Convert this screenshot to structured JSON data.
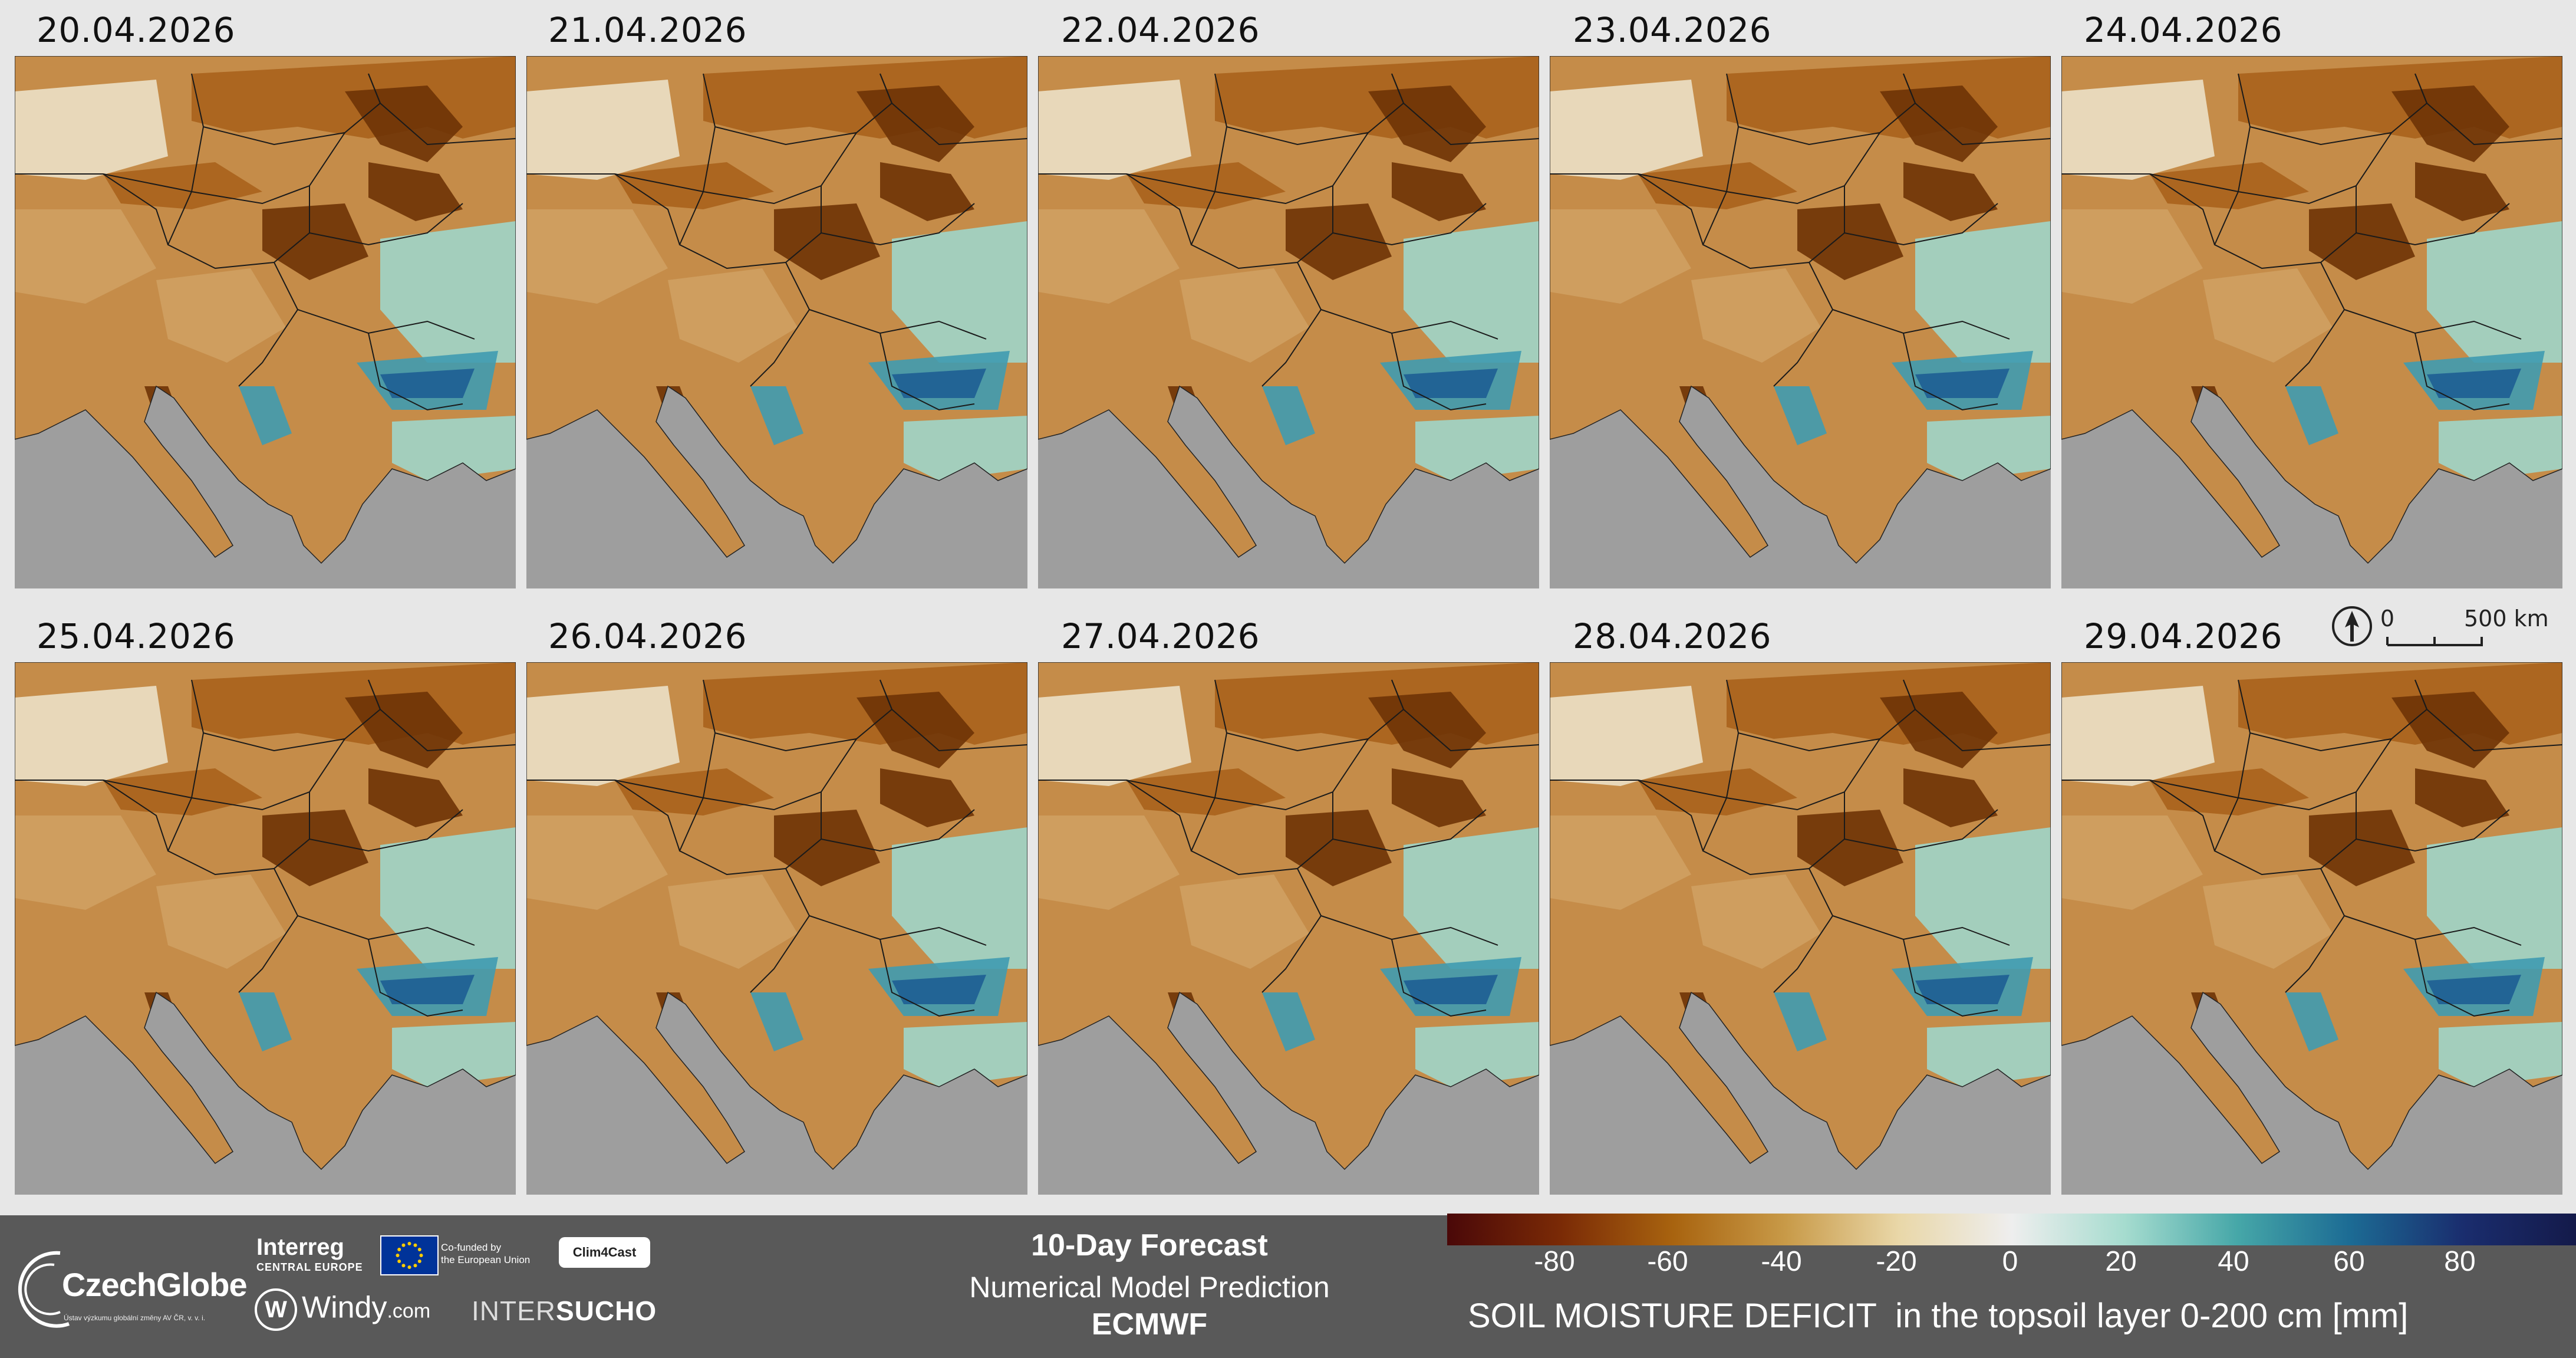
{
  "panels": [
    {
      "date": "20.04.2026"
    },
    {
      "date": "21.04.2026"
    },
    {
      "date": "22.04.2026"
    },
    {
      "date": "23.04.2026"
    },
    {
      "date": "24.04.2026"
    },
    {
      "date": "25.04.2026"
    },
    {
      "date": "26.04.2026"
    },
    {
      "date": "27.04.2026"
    },
    {
      "date": "28.04.2026"
    },
    {
      "date": "29.04.2026"
    }
  ],
  "scale_bar": {
    "start": "0",
    "end": "500 km"
  },
  "footer": {
    "czechglobe": "CzechGlobe",
    "czechglobe_sub": "Ústav výzkumu globální změny AV ČR, v. v. i.",
    "interreg": "Interreg",
    "interreg_sub": "CENTRAL EUROPE",
    "cofunded_line1": "Co-funded by",
    "cofunded_line2": "the European Union",
    "clim4cast": "Clim4Cast",
    "windy": "Windy",
    "windy_com": ".com",
    "intersucho_1": "INTER",
    "intersucho_2": "SUCHO",
    "forecast_title": "10-Day Forecast",
    "forecast_sub": "Numerical Model Prediction",
    "forecast_model": "ECMWF"
  },
  "colorbar": {
    "ticks": [
      "-80",
      "-60",
      "-40",
      "-20",
      "0",
      "20",
      "40",
      "60",
      "80"
    ],
    "title": "SOIL MOISTURE DEFICIT  in the topsoil layer 0-200 cm [mm]",
    "colors": [
      "#4a0808",
      "#7a2a06",
      "#a8630f",
      "#c89a48",
      "#e9d7a8",
      "#eeeeee",
      "#a6dccf",
      "#46a7a8",
      "#1c6b94",
      "#1a2d6e",
      "#141a4a"
    ]
  },
  "map_colors": {
    "sea": "#9e9e9e",
    "dry_dark": "#6e3306",
    "dry_mid": "#a8621c",
    "dry_light": "#cfa062",
    "neutral": "#ebe0c6",
    "wet_light": "#9ed5c9",
    "wet_mid": "#3f9bb0",
    "wet_dark": "#1e5e93"
  }
}
